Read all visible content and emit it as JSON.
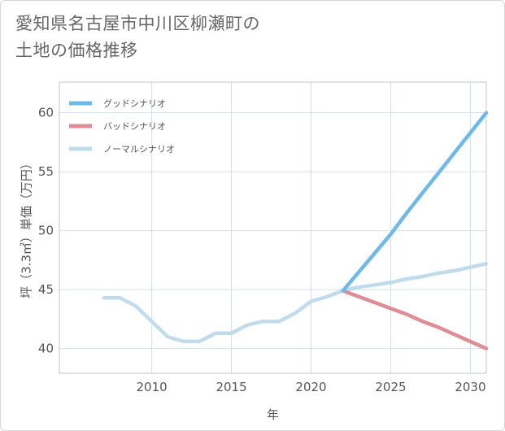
{
  "title_line1": "愛知県名古屋市中川区柳瀬町の",
  "title_line2": "土地の価格推移",
  "colors": {
    "good": "#6cbaec",
    "bad": "#e08c94",
    "normal": "#c0dcec",
    "grid": "#d4dee8",
    "plot_border": "#c6c6c6"
  },
  "chart_data": {
    "type": "line",
    "title": "愛知県名古屋市中川区柳瀬町の土地の価格推移",
    "xlabel": "年",
    "ylabel": "坪（3.3㎡）単価（万円）",
    "xlim": [
      2004.2,
      2031
    ],
    "ylim": [
      37.9,
      62.6
    ],
    "x_ticks": [
      2010,
      2015,
      2020,
      2025,
      2030
    ],
    "y_ticks": [
      40,
      45,
      50,
      55,
      60
    ],
    "grid": true,
    "legend_position": "top-left",
    "series": [
      {
        "name": "グッドシナリオ",
        "color_key": "good",
        "x": [
          2022,
          2023,
          2024,
          2025,
          2026,
          2027,
          2028,
          2029,
          2030,
          2031
        ],
        "y": [
          44.9,
          46.5,
          48.1,
          49.7,
          51.5,
          53.2,
          54.9,
          56.6,
          58.3,
          60.0
        ]
      },
      {
        "name": "バッドシナリオ",
        "color_key": "bad",
        "x": [
          2022,
          2023,
          2024,
          2025,
          2026,
          2027,
          2028,
          2029,
          2030,
          2031
        ],
        "y": [
          44.9,
          44.4,
          43.9,
          43.4,
          42.9,
          42.3,
          41.8,
          41.2,
          40.6,
          40.0
        ]
      },
      {
        "name": "ノーマルシナリオ",
        "color_key": "normal",
        "x": [
          2007,
          2008,
          2009,
          2010,
          2011,
          2012,
          2013,
          2014,
          2015,
          2016,
          2017,
          2018,
          2019,
          2020,
          2021,
          2022,
          2023,
          2024,
          2025,
          2026,
          2027,
          2028,
          2029,
          2030,
          2031
        ],
        "y": [
          44.3,
          44.3,
          43.6,
          42.3,
          41.0,
          40.6,
          40.6,
          41.3,
          41.3,
          42.0,
          42.3,
          42.3,
          43.0,
          44.0,
          44.4,
          44.9,
          45.2,
          45.4,
          45.6,
          45.9,
          46.1,
          46.4,
          46.6,
          46.9,
          47.2
        ]
      }
    ]
  }
}
